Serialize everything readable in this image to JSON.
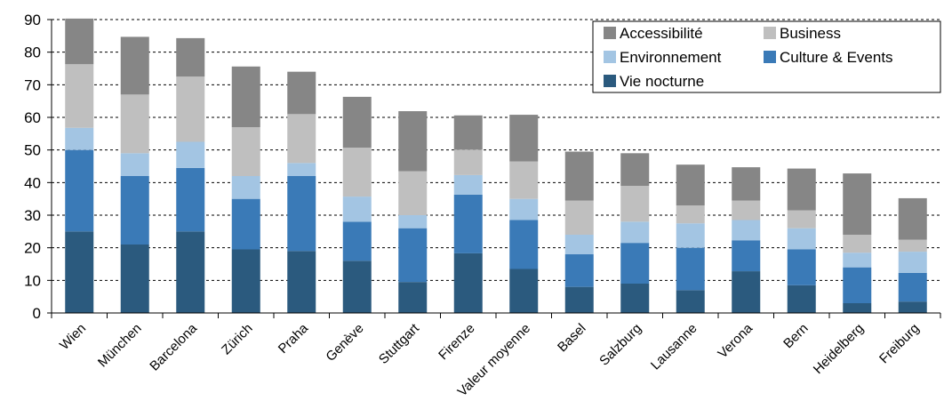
{
  "chart_data": {
    "type": "bar",
    "stacked": true,
    "categories": [
      "Wien",
      "München",
      "Barcelona",
      "Zürich",
      "Praha",
      "Genève",
      "Stuttgart",
      "Firenze",
      "Valeur moyenne",
      "Basel",
      "Salzburg",
      "Lausanne",
      "Verona",
      "Bern",
      "Heidelberg",
      "Freiburg"
    ],
    "series": [
      {
        "name": "Vie nocturne",
        "color": "#2b5a7e",
        "values": [
          25,
          21,
          25,
          19.5,
          19,
          16,
          9.5,
          18.3,
          13.5,
          8,
          9,
          7,
          12.8,
          8.5,
          3,
          3.5
        ]
      },
      {
        "name": "Culture & Events",
        "color": "#3a7ab7",
        "values": [
          25,
          21,
          19.5,
          15.5,
          23,
          12,
          16.5,
          18,
          15,
          10,
          12.5,
          13,
          9.5,
          11,
          11,
          8.8
        ]
      },
      {
        "name": "Environnement",
        "color": "#a3c5e3",
        "values": [
          6.8,
          7,
          8,
          7,
          4,
          7.7,
          4,
          6,
          6.5,
          6,
          6.5,
          7.5,
          6.2,
          6.5,
          4.5,
          6.5
        ]
      },
      {
        "name": "Business",
        "color": "#bfbfbf",
        "values": [
          19.5,
          18,
          20,
          15,
          15,
          15,
          13.5,
          7.8,
          11.5,
          10.5,
          11,
          5.5,
          6,
          5.5,
          5.5,
          3.7
        ]
      },
      {
        "name": "Accessibilité",
        "color": "#868686",
        "values": [
          14,
          17.7,
          11.8,
          18.6,
          13,
          15.6,
          18.4,
          10.5,
          14.3,
          15,
          10,
          12.5,
          10.2,
          12.8,
          18.8,
          12.7
        ]
      }
    ],
    "legend_order": [
      "Accessibilité",
      "Business",
      "Environnement",
      "Culture & Events",
      "Vie nocturne"
    ],
    "ylim": [
      0,
      90
    ],
    "yticks": [
      0,
      10,
      20,
      30,
      40,
      50,
      60,
      70,
      80,
      90
    ],
    "grid": "horizontal dashed",
    "legend_position": "top-right"
  }
}
